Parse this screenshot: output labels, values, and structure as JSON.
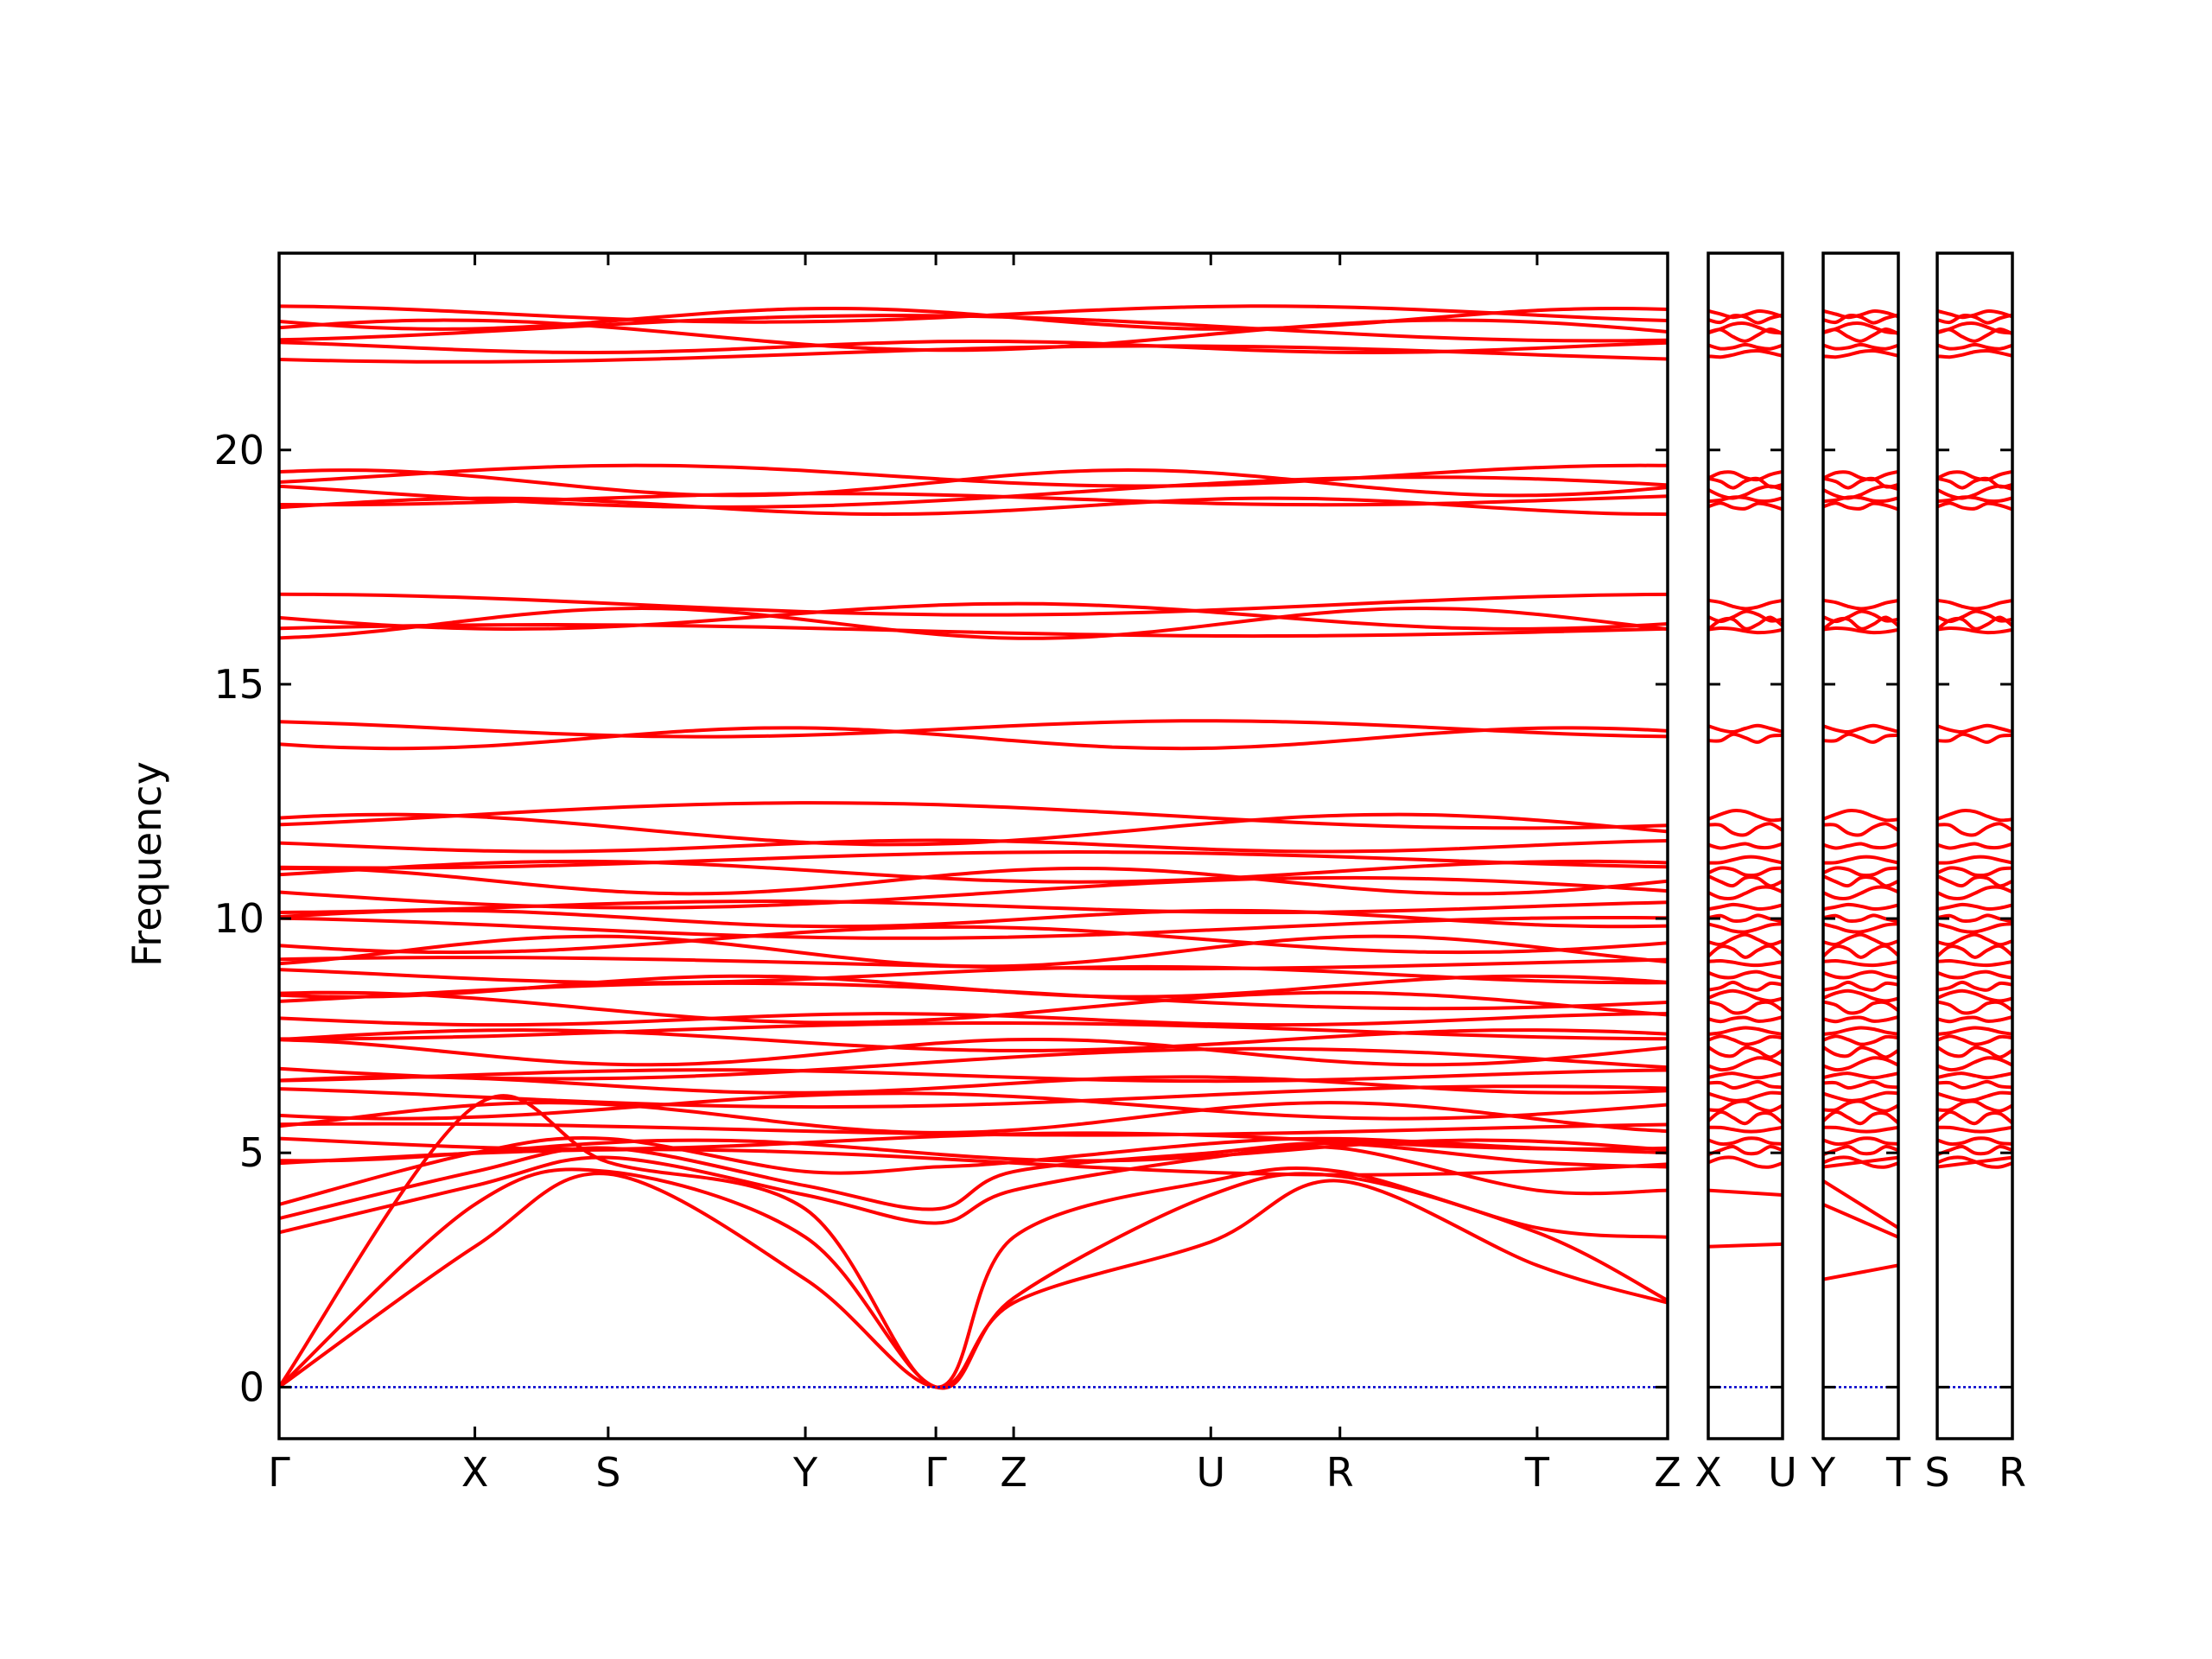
{
  "chart_data": {
    "type": "line",
    "ylabel": "Frequency",
    "ylim": [
      -1.1,
      24.2
    ],
    "yticks": [
      0,
      5,
      10,
      15,
      20
    ],
    "ytick_labels": [
      "0",
      "5",
      "10",
      "15",
      "20"
    ],
    "band_color": "#ff0000",
    "zero_line_color": "#0000cc",
    "panels": [
      {
        "ticks": [
          "Γ",
          "X",
          "S",
          "Y",
          "Γ",
          "Z",
          "U",
          "R",
          "T",
          "Z"
        ],
        "tick_positions": [
          0.0,
          0.141,
          0.237,
          0.379,
          0.473,
          0.529,
          0.671,
          0.764,
          0.906,
          1.0
        ]
      },
      {
        "ticks": [
          "X",
          "U"
        ],
        "tick_positions": [
          0.0,
          1.0
        ]
      },
      {
        "ticks": [
          "Y",
          "T"
        ],
        "tick_positions": [
          0.0,
          1.0
        ]
      },
      {
        "ticks": [
          "S",
          "R"
        ],
        "tick_positions": [
          0.0,
          1.0
        ]
      }
    ],
    "flat_groups": [
      [
        22.9,
        22.8,
        22.6,
        22.45,
        22.2,
        22.05
      ],
      [
        19.45,
        19.3,
        19.1,
        18.95,
        18.8
      ],
      [
        16.7,
        16.45,
        16.3,
        16.15
      ],
      [
        14.05,
        13.85
      ],
      [
        12.2,
        11.9,
        11.55,
        11.25,
        11.0,
        10.8,
        10.55,
        10.25,
        10.0,
        9.8,
        9.55,
        9.3,
        9.05,
        8.8,
        8.55,
        8.35,
        8.1,
        7.85,
        7.6,
        7.4,
        7.15,
        6.9,
        6.65,
        6.45,
        6.2,
        6.0,
        5.75,
        5.5,
        5.25,
        5.05,
        4.8
      ]
    ],
    "low_bands_main": [
      {
        "x": [
          0.0,
          0.141,
          0.237,
          0.379,
          0.473,
          0.529,
          0.671,
          0.764,
          0.906,
          1.0
        ],
        "y": [
          0.0,
          3.0,
          4.55,
          2.3,
          0.0,
          1.8,
          3.1,
          4.4,
          2.6,
          1.8
        ]
      },
      {
        "x": [
          0.0,
          0.141,
          0.237,
          0.379,
          0.473,
          0.529,
          0.671,
          0.764,
          0.906,
          1.0
        ],
        "y": [
          0.0,
          3.9,
          4.6,
          3.2,
          0.0,
          1.9,
          4.1,
          4.5,
          3.3,
          1.85
        ]
      },
      {
        "x": [
          0.0,
          0.141,
          0.237,
          0.379,
          0.473,
          0.529,
          0.671,
          0.764,
          0.906,
          1.0
        ],
        "y": [
          0.0,
          6.0,
          4.8,
          3.8,
          0.0,
          3.2,
          4.4,
          4.6,
          3.4,
          3.2
        ]
      },
      {
        "x": [
          0.0,
          0.141,
          0.237,
          0.379,
          0.473,
          0.529,
          0.671,
          0.764,
          0.906,
          1.0
        ],
        "y": [
          3.3,
          4.3,
          4.9,
          4.1,
          3.5,
          4.2,
          4.9,
          5.1,
          4.2,
          4.2
        ]
      },
      {
        "x": [
          0.0,
          0.141,
          0.237,
          0.379,
          0.473,
          0.529,
          0.671,
          0.764,
          0.906,
          1.0
        ],
        "y": [
          3.6,
          4.6,
          5.1,
          4.3,
          3.8,
          4.6,
          5.0,
          5.2,
          4.8,
          4.7
        ]
      },
      {
        "x": [
          0.0,
          0.141,
          0.237,
          0.379,
          0.473,
          0.529,
          0.671,
          0.764,
          0.906,
          1.0
        ],
        "y": [
          3.9,
          5.0,
          5.3,
          4.6,
          4.7,
          4.8,
          5.2,
          5.3,
          5.1,
          5.0
        ]
      }
    ],
    "low_bands_side": [
      [
        3.0,
        3.05
      ],
      [
        4.2,
        4.1
      ],
      [
        2.3,
        2.6
      ],
      [
        3.9,
        3.2
      ],
      [
        4.4,
        3.4
      ],
      [
        4.7,
        4.9
      ]
    ]
  }
}
